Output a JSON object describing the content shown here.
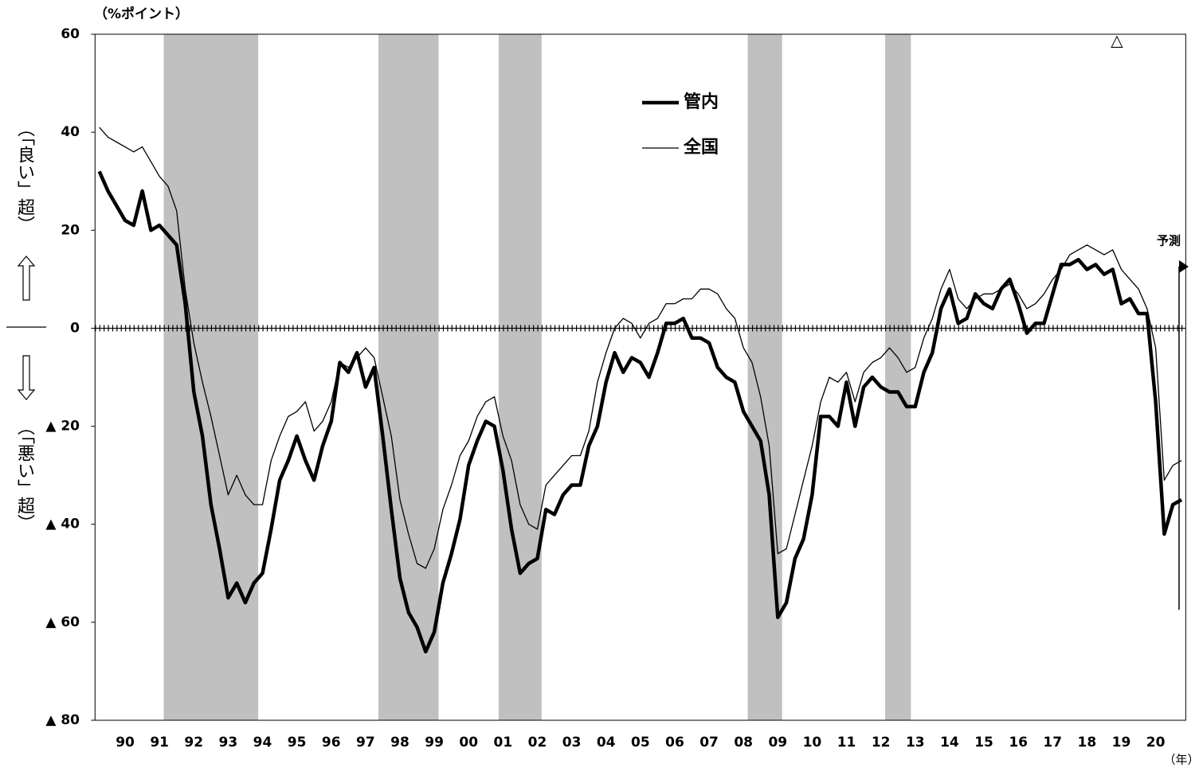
{
  "chart_data": {
    "type": "line",
    "y_unit_label": "（%ポイント）",
    "upper_label": "（「良い」超）",
    "lower_label": "（「悪い」超）",
    "x_unit_label": "（年）",
    "forecast_label": "予測",
    "marker_label": "△",
    "categories": [
      null,
      null,
      null,
      "90",
      null,
      null,
      null,
      "91",
      null,
      null,
      null,
      "92",
      null,
      null,
      null,
      "93",
      null,
      null,
      null,
      "94",
      null,
      null,
      null,
      "95",
      null,
      null,
      null,
      "96",
      null,
      null,
      null,
      "97",
      null,
      null,
      null,
      "98",
      null,
      null,
      null,
      "99",
      null,
      null,
      null,
      "00",
      null,
      null,
      null,
      "01",
      null,
      null,
      null,
      "02",
      null,
      null,
      null,
      "03",
      null,
      null,
      null,
      "04",
      null,
      null,
      null,
      "05",
      null,
      null,
      null,
      "06",
      null,
      null,
      null,
      "07",
      null,
      null,
      null,
      "08",
      null,
      null,
      null,
      "09",
      null,
      null,
      null,
      "10",
      null,
      null,
      null,
      "11",
      null,
      null,
      null,
      "12",
      null,
      null,
      null,
      "13",
      null,
      null,
      null,
      "14",
      null,
      null,
      null,
      "15",
      null,
      null,
      null,
      "16",
      null,
      null,
      null,
      "17",
      null,
      null,
      null,
      "18",
      null,
      null,
      null,
      "19",
      null,
      null,
      null,
      "20",
      null,
      null,
      null
    ],
    "series": [
      {
        "name": "管内",
        "color": "#000000",
        "line_width": 4.5,
        "values": [
          32,
          28,
          25,
          22,
          21,
          28,
          20,
          21,
          19,
          17,
          5,
          -13,
          -22,
          -36,
          -45,
          -55,
          -52,
          -56,
          -52,
          -50,
          -41,
          -31,
          -27,
          -22,
          -27,
          -31,
          -24,
          -19,
          -7,
          -9,
          -5,
          -12,
          -8,
          -22,
          -37,
          -51,
          -58,
          -61,
          -66,
          -62,
          -52,
          -46,
          -39,
          -28,
          -23,
          -19,
          -20,
          -29,
          -41,
          -50,
          -48,
          -47,
          -37,
          -38,
          -34,
          -32,
          -32,
          -24,
          -20,
          -11,
          -5,
          -9,
          -6,
          -7,
          -10,
          -5,
          1,
          1,
          2,
          -2,
          -2,
          -3,
          -8,
          -10,
          -11,
          -17,
          -20,
          -23,
          -34,
          -59,
          -56,
          -47,
          -43,
          -34,
          -18,
          -18,
          -20,
          -11,
          -20,
          -12,
          -10,
          -12,
          -13,
          -13,
          -16,
          -16,
          -9,
          -5,
          4,
          8,
          1,
          2,
          7,
          5,
          4,
          8,
          10,
          5,
          -1,
          1,
          1,
          7,
          13,
          13,
          14,
          12,
          13,
          11,
          12,
          5,
          6,
          3,
          3,
          -15,
          -42,
          -36,
          -35
        ]
      },
      {
        "name": "全国",
        "color": "#000000",
        "line_width": 1.3,
        "values": [
          41,
          39,
          38,
          37,
          36,
          37,
          34,
          31,
          29,
          24,
          8,
          -3,
          -11,
          -18,
          -26,
          -34,
          -30,
          -34,
          -36,
          -36,
          -27,
          -22,
          -18,
          -17,
          -15,
          -21,
          -19,
          -15,
          -7,
          -8,
          -6,
          -4,
          -6,
          -14,
          -22,
          -35,
          -42,
          -48,
          -49,
          -45,
          -37,
          -32,
          -26,
          -23,
          -18,
          -15,
          -14,
          -22,
          -27,
          -36,
          -40,
          -41,
          -32,
          -30,
          -28,
          -26,
          -26,
          -21,
          -11,
          -5,
          0,
          2,
          1,
          -2,
          1,
          2,
          5,
          5,
          6,
          6,
          8,
          8,
          7,
          4,
          2,
          -4,
          -7,
          -14,
          -24,
          -46,
          -45,
          -38,
          -31,
          -24,
          -15,
          -10,
          -11,
          -9,
          -15,
          -9,
          -7,
          -6,
          -4,
          -6,
          -9,
          -8,
          -2,
          2,
          8,
          12,
          6,
          4,
          6,
          7,
          7,
          8,
          9,
          7,
          4,
          5,
          7,
          10,
          12,
          15,
          16,
          17,
          16,
          15,
          16,
          12,
          10,
          8,
          4,
          -4,
          -31,
          -28,
          -27
        ]
      }
    ],
    "recession_bands": [
      [
        8,
        19
      ],
      [
        33,
        40
      ],
      [
        47,
        52
      ],
      [
        76,
        80
      ],
      [
        92,
        95
      ]
    ],
    "recession_color": "#c0c0c0",
    "ylim": [
      -80,
      60
    ],
    "yticks": [
      {
        "value": -80,
        "label": "▲ 80"
      },
      {
        "value": -60,
        "label": "▲ 60"
      },
      {
        "value": -40,
        "label": "▲ 40"
      },
      {
        "value": -20,
        "label": "▲ 20"
      },
      0,
      20,
      40,
      60
    ],
    "grid": false
  }
}
